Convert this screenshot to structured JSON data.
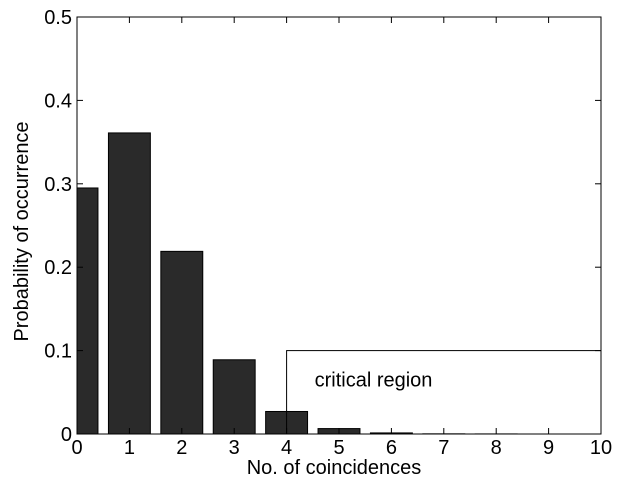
{
  "chart_data": {
    "type": "bar",
    "xlabel": "No. of coincidences",
    "ylabel": "Probability of occurrence",
    "title": "",
    "xlim": [
      0,
      10
    ],
    "ylim": [
      0,
      0.5
    ],
    "x_ticks": [
      0,
      1,
      2,
      3,
      4,
      5,
      6,
      7,
      8,
      9,
      10
    ],
    "x_tick_labels": [
      "0",
      "1",
      "2",
      "3",
      "4",
      "5",
      "6",
      "7",
      "8",
      "9",
      "10"
    ],
    "y_ticks": [
      0,
      0.1,
      0.2,
      0.3,
      0.4,
      0.5
    ],
    "y_tick_labels": [
      "0",
      "0.1",
      "0.2",
      "0.3",
      "0.4",
      "0.5"
    ],
    "bar_width": 0.8,
    "bar_color": "#2a2a2a",
    "bars": [
      {
        "x": 0,
        "value": 0.295
      },
      {
        "x": 1,
        "value": 0.361
      },
      {
        "x": 2,
        "value": 0.219
      },
      {
        "x": 3,
        "value": 0.089
      },
      {
        "x": 4,
        "value": 0.027
      },
      {
        "x": 5,
        "value": 0.0065
      },
      {
        "x": 6,
        "value": 0.0013
      },
      {
        "x": 7,
        "value": 0.0002
      },
      {
        "x": 8,
        "value": 0.0001
      },
      {
        "x": 9,
        "value": 0.0
      },
      {
        "x": 10,
        "value": 0.0
      }
    ],
    "grid": false,
    "annotation": {
      "text": "critical region",
      "x_range": [
        4,
        10
      ],
      "y_range": [
        0,
        0.1
      ]
    }
  }
}
